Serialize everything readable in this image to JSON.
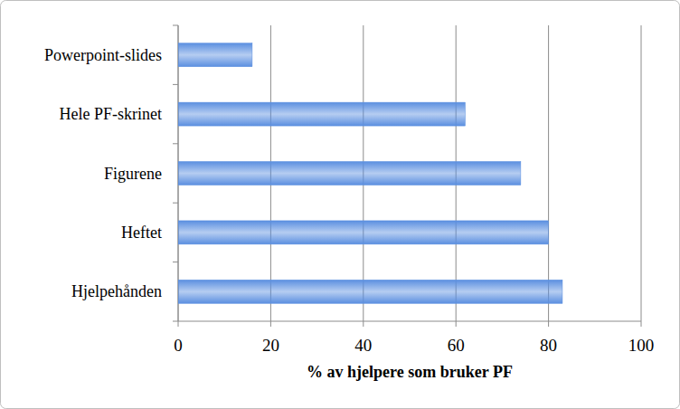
{
  "chart_data": {
    "type": "bar",
    "orientation": "horizontal",
    "categories": [
      "Powerpoint-slides",
      "Hele PF-skrinet",
      "Figurene",
      "Heftet",
      "Hjelpehånden"
    ],
    "values": [
      16,
      62,
      74,
      80,
      83
    ],
    "color": "#5b8fe0",
    "x_label": "% av hjelpere som bruker PF",
    "xlim": [
      0,
      100
    ],
    "xticks": [
      0,
      20,
      40,
      60,
      80,
      100
    ],
    "grid": true
  }
}
